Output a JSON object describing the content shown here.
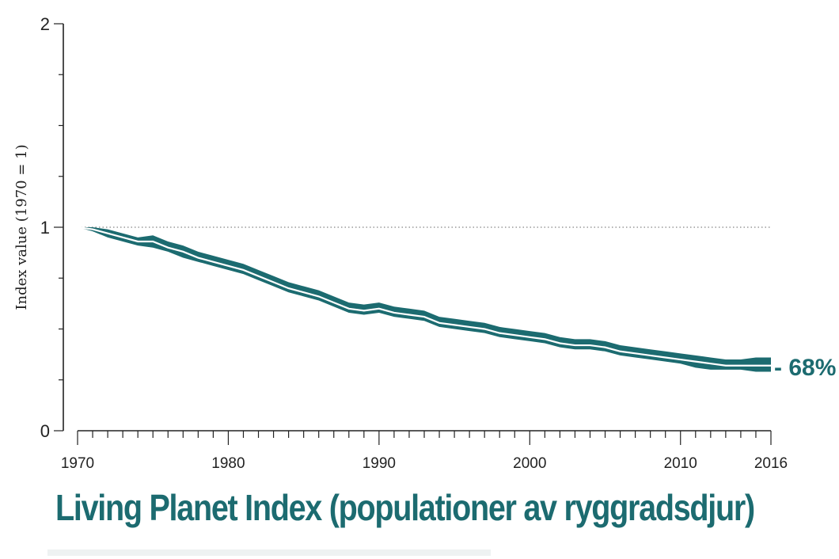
{
  "chart_data": {
    "type": "area",
    "title": "Living Planet Index (populationer av ryggradsdjur)",
    "ylabel": "Index value (1970 = 1)",
    "xlabel": "",
    "xlim": [
      1970,
      2016
    ],
    "ylim": [
      0,
      2
    ],
    "x_ticks": [
      "1970",
      "1980",
      "1990",
      "2000",
      "2010",
      "2016"
    ],
    "y_ticks": [
      "0",
      "1",
      "2"
    ],
    "reference_line": 1,
    "end_annotation": "- 68%",
    "colors": {
      "band": "#1c6b70",
      "line": "#ffffff",
      "accent": "#1c6b70"
    },
    "series": [
      {
        "x": [
          1970,
          1971,
          1972,
          1973,
          1974,
          1975,
          1976,
          1977,
          1978,
          1979,
          1980,
          1981,
          1982,
          1983,
          1984,
          1985,
          1986,
          1987,
          1988,
          1989,
          1990,
          1991,
          1992,
          1993,
          1994,
          1995,
          1996,
          1997,
          1998,
          1999,
          2000,
          2001,
          2002,
          2003,
          2004,
          2005,
          2006,
          2007,
          2008,
          2009,
          2010,
          2011,
          2012,
          2013,
          2014,
          2015,
          2016
        ],
        "values": [
          1.0,
          0.99,
          0.97,
          0.95,
          0.93,
          0.93,
          0.9,
          0.88,
          0.85,
          0.83,
          0.81,
          0.79,
          0.76,
          0.73,
          0.7,
          0.68,
          0.66,
          0.63,
          0.6,
          0.59,
          0.6,
          0.58,
          0.57,
          0.56,
          0.53,
          0.52,
          0.51,
          0.5,
          0.48,
          0.47,
          0.46,
          0.45,
          0.43,
          0.42,
          0.42,
          0.41,
          0.39,
          0.38,
          0.37,
          0.36,
          0.35,
          0.34,
          0.33,
          0.32,
          0.32,
          0.32,
          0.32
        ],
        "lower": [
          1.0,
          0.98,
          0.95,
          0.93,
          0.91,
          0.9,
          0.88,
          0.85,
          0.83,
          0.81,
          0.79,
          0.77,
          0.74,
          0.71,
          0.68,
          0.66,
          0.64,
          0.61,
          0.58,
          0.57,
          0.58,
          0.56,
          0.55,
          0.54,
          0.51,
          0.5,
          0.49,
          0.48,
          0.46,
          0.45,
          0.44,
          0.43,
          0.41,
          0.4,
          0.4,
          0.39,
          0.37,
          0.36,
          0.35,
          0.34,
          0.33,
          0.31,
          0.3,
          0.3,
          0.3,
          0.29,
          0.29
        ],
        "upper": [
          1.0,
          1.0,
          0.99,
          0.97,
          0.95,
          0.96,
          0.93,
          0.91,
          0.88,
          0.86,
          0.84,
          0.82,
          0.79,
          0.76,
          0.73,
          0.71,
          0.69,
          0.66,
          0.63,
          0.62,
          0.63,
          0.61,
          0.6,
          0.59,
          0.56,
          0.55,
          0.54,
          0.53,
          0.51,
          0.5,
          0.49,
          0.48,
          0.46,
          0.45,
          0.45,
          0.44,
          0.42,
          0.41,
          0.4,
          0.39,
          0.38,
          0.37,
          0.36,
          0.35,
          0.35,
          0.36,
          0.36
        ]
      }
    ]
  }
}
